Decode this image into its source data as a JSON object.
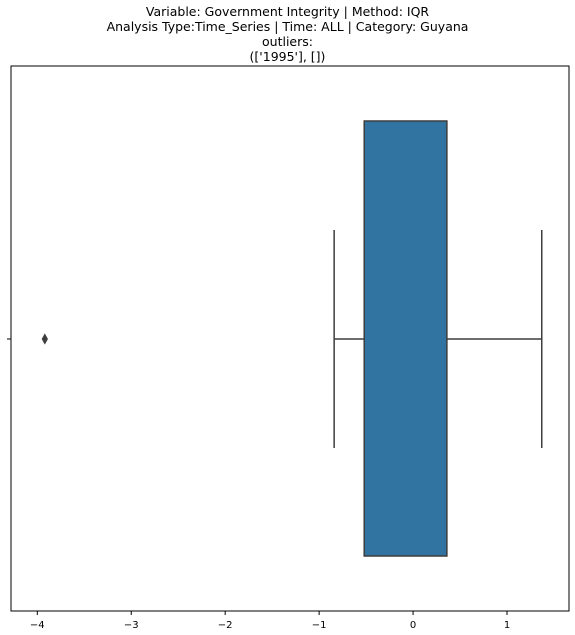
{
  "chart_data": {
    "type": "box",
    "title_lines": [
      "Variable: Government Integrity | Method: IQR",
      "Analysis Type:Time_Series | Time: ALL | Category: Guyana",
      "outliers:",
      "(['1995'], [])"
    ],
    "xlabel": "",
    "ylabel": "",
    "xlim": [
      -4.28,
      1.66
    ],
    "xticks": [
      -4,
      -3,
      -2,
      -1,
      0,
      1
    ],
    "xtick_labels": [
      "−4",
      "−3",
      "−2",
      "−1",
      "0",
      "1"
    ],
    "box": {
      "q1": -0.52,
      "q3": 0.36,
      "whisker_low": -0.84,
      "whisker_high": 1.37,
      "outliers": [
        -3.92
      ],
      "color": "#3274a1",
      "edge_color": "#3d3d3d"
    },
    "grid": false
  }
}
